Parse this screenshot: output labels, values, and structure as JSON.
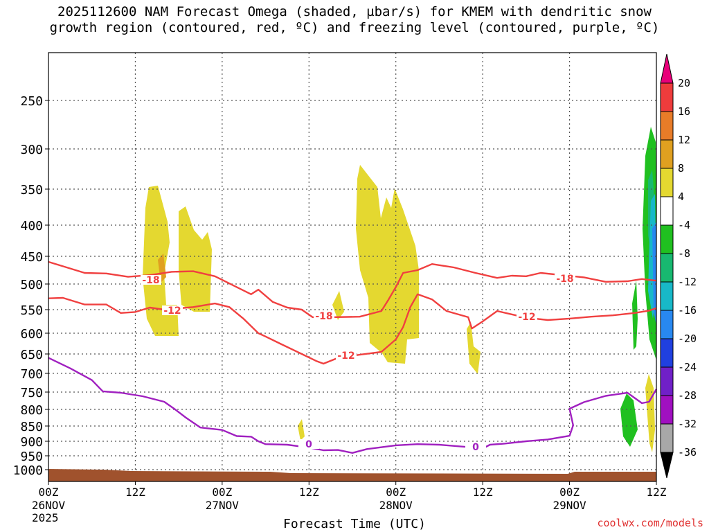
{
  "title_line1": "2025112600 NAM Forecast Omega (shaded, µbar/s) for KMEM with dendritic snow",
  "title_line2": "growth region (contoured, red, ºC) and freezing level (contoured, purple, ºC)",
  "watermark": "coolwx.com/models",
  "chart_data": {
    "type": "time-height cross-section",
    "xlabel": "Forecast Time (UTC)",
    "year": "2025",
    "x_ticks": [
      {
        "hour": 0,
        "label": "00Z",
        "date": "26NOV"
      },
      {
        "hour": 12,
        "label": "12Z",
        "date": ""
      },
      {
        "hour": 24,
        "label": "00Z",
        "date": "27NOV"
      },
      {
        "hour": 36,
        "label": "12Z",
        "date": ""
      },
      {
        "hour": 48,
        "label": "00Z",
        "date": "28NOV"
      },
      {
        "hour": 60,
        "label": "12Z",
        "date": ""
      },
      {
        "hour": 72,
        "label": "00Z",
        "date": "29NOV"
      },
      {
        "hour": 84,
        "label": "12Z",
        "date": ""
      }
    ],
    "xlim_hours": [
      0,
      84
    ],
    "ylabel_units": "hPa",
    "y_ticks": [
      "250",
      "300",
      "350",
      "400",
      "450",
      "500",
      "550",
      "600",
      "650",
      "700",
      "750",
      "800",
      "850",
      "900",
      "950",
      "1000"
    ],
    "colorbar": {
      "labels": [
        "20",
        "16",
        "12",
        "8",
        "4",
        "-4",
        "-8",
        "-12",
        "-16",
        "-20",
        "-24",
        "-28",
        "-32",
        "-36"
      ],
      "colors": [
        "#e8007a",
        "#ee3c3c",
        "#e87c28",
        "#e0a020",
        "#e4d830",
        "#ffffff",
        "#20c020",
        "#18b870",
        "#18b8c8",
        "#2888f0",
        "#2040e0",
        "#7020c8",
        "#a010c0",
        "#a8a8a8",
        "#000000"
      ]
    },
    "contour_labels": {
      "dgz": [
        "-18",
        "-12",
        "-18",
        "-12",
        "-12",
        "-18"
      ],
      "freezing": [
        "0",
        "0"
      ]
    },
    "series": [
      {
        "name": "-18C isotherm",
        "color": "#f04040",
        "points": [
          [
            0,
            460
          ],
          [
            2,
            468
          ],
          [
            5,
            480
          ],
          [
            8,
            481
          ],
          [
            11,
            487
          ],
          [
            14,
            484
          ],
          [
            17,
            478
          ],
          [
            20,
            477
          ],
          [
            23,
            486
          ],
          [
            26,
            506
          ],
          [
            28,
            520
          ],
          [
            29,
            511
          ],
          [
            31,
            535
          ],
          [
            33,
            546
          ],
          [
            35,
            550
          ],
          [
            36.5,
            566
          ],
          [
            39,
            566
          ],
          [
            43,
            565
          ],
          [
            46,
            553
          ],
          [
            47,
            530
          ],
          [
            48,
            506
          ],
          [
            49,
            480
          ],
          [
            51,
            475
          ],
          [
            53,
            464
          ],
          [
            56,
            470
          ],
          [
            59,
            480
          ],
          [
            62,
            489
          ],
          [
            64,
            485
          ],
          [
            66,
            486
          ],
          [
            68,
            480
          ],
          [
            71,
            484
          ],
          [
            74,
            488
          ],
          [
            77,
            496
          ],
          [
            80,
            495
          ],
          [
            82,
            491
          ],
          [
            84,
            494
          ]
        ]
      },
      {
        "name": "-12C isotherm",
        "color": "#f04040",
        "points": [
          [
            0,
            528
          ],
          [
            2,
            527
          ],
          [
            5,
            540
          ],
          [
            8,
            540
          ],
          [
            10,
            557
          ],
          [
            12,
            555
          ],
          [
            14,
            546
          ],
          [
            16,
            550
          ],
          [
            20,
            545
          ],
          [
            23,
            538
          ],
          [
            25,
            545
          ],
          [
            27,
            570
          ],
          [
            29,
            600
          ],
          [
            30,
            608
          ],
          [
            32,
            625
          ],
          [
            35,
            650
          ],
          [
            37,
            668
          ],
          [
            38,
            675
          ],
          [
            40,
            660
          ],
          [
            43,
            652
          ],
          [
            46,
            645
          ],
          [
            48,
            615
          ],
          [
            49,
            587
          ],
          [
            50,
            545
          ],
          [
            51,
            520
          ],
          [
            53,
            530
          ],
          [
            55,
            553
          ],
          [
            58,
            566
          ],
          [
            58.5,
            590
          ],
          [
            60,
            575
          ],
          [
            62,
            553
          ],
          [
            64,
            560
          ],
          [
            66,
            567
          ],
          [
            69,
            572
          ],
          [
            72,
            569
          ],
          [
            75,
            565
          ],
          [
            78,
            562
          ],
          [
            81,
            557
          ],
          [
            83,
            552
          ],
          [
            84,
            547
          ]
        ]
      },
      {
        "name": "0C freezing level",
        "color": "#a020c0",
        "points": [
          [
            0,
            660
          ],
          [
            3,
            687
          ],
          [
            6,
            718
          ],
          [
            7.5,
            748
          ],
          [
            10,
            752
          ],
          [
            13,
            762
          ],
          [
            16,
            778
          ],
          [
            17.5,
            800
          ],
          [
            19,
            825
          ],
          [
            21,
            855
          ],
          [
            24,
            863
          ],
          [
            26,
            883
          ],
          [
            28,
            885
          ],
          [
            29,
            900
          ],
          [
            30,
            910
          ],
          [
            33,
            912
          ],
          [
            36,
            922
          ],
          [
            38,
            931
          ],
          [
            40,
            930
          ],
          [
            42,
            940
          ],
          [
            44,
            927
          ],
          [
            48,
            914
          ],
          [
            51,
            910
          ],
          [
            54,
            912
          ],
          [
            57,
            918
          ],
          [
            59,
            922
          ],
          [
            60,
            925
          ],
          [
            61,
            912
          ],
          [
            63,
            908
          ],
          [
            66,
            900
          ],
          [
            69,
            894
          ],
          [
            72,
            882
          ],
          [
            72.5,
            848
          ],
          [
            72,
            798
          ],
          [
            74,
            779
          ],
          [
            77,
            761
          ],
          [
            80,
            752
          ],
          [
            82,
            782
          ],
          [
            83,
            778
          ],
          [
            84,
            742
          ]
        ]
      }
    ]
  }
}
